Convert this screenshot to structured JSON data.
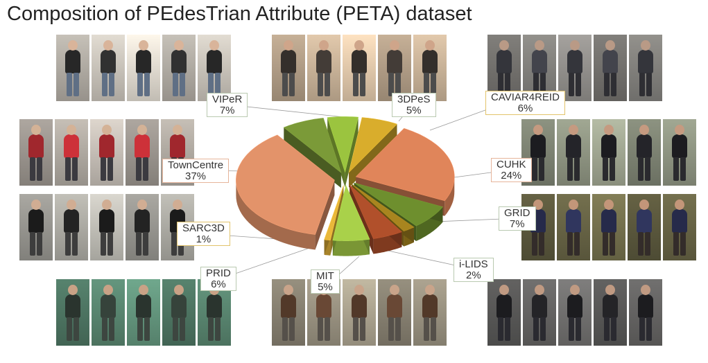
{
  "title": "Composition of PEdesTrian Attribute (PETA) dataset",
  "chart_data": {
    "type": "pie",
    "title": "Composition of PEdesTrian Attribute (PETA) dataset",
    "slices": [
      {
        "name": "3DPeS",
        "value": 5,
        "label": "5%",
        "color": "#9bc43f"
      },
      {
        "name": "CAVIAR4REID",
        "value": 6,
        "label": "6%",
        "color": "#d9ad2c"
      },
      {
        "name": "CUHK",
        "value": 24,
        "label": "24%",
        "color": "#e0855a"
      },
      {
        "name": "GRID",
        "value": 7,
        "label": "7%",
        "color": "#6e8f2e"
      },
      {
        "name": "i-LIDS",
        "value": 2,
        "label": "2%",
        "color": "#a8851f"
      },
      {
        "name": "MIT",
        "value": 5,
        "label": "5%",
        "color": "#b1502b"
      },
      {
        "name": "PRID",
        "value": 6,
        "label": "6%",
        "color": "#a9d14a"
      },
      {
        "name": "SARC3D",
        "value": 1,
        "label": "1%",
        "color": "#e9b83a"
      },
      {
        "name": "TownCentre",
        "value": 37,
        "label": "37%",
        "color": "#e3936a"
      },
      {
        "name": "VIPeR",
        "value": 7,
        "label": "7%",
        "color": "#7b9a38"
      }
    ]
  },
  "thumbnails": [
    {
      "group": "VIPeR",
      "palette": [
        "#d8d2c8",
        "#2b2b2b",
        "#5f6f85",
        "#d9b49a"
      ]
    },
    {
      "group": "3DPeS",
      "palette": [
        "#d8c0a4",
        "#3a3430",
        "#4c4c4c",
        "#cfa58a"
      ]
    },
    {
      "group": "CAVIAR4REID",
      "palette": [
        "#8c8a86",
        "#3a3b42",
        "#2e2e33",
        "#b99a86"
      ]
    },
    {
      "group": "TownCentre",
      "palette": [
        "#bdb6ae",
        "#b22b32",
        "#3b3a40",
        "#d4b296"
      ]
    },
    {
      "group": "CUHK",
      "palette": [
        "#9aa08c",
        "#1f1f24",
        "#2a2a2e",
        "#c59a80"
      ]
    },
    {
      "group": "SARC3D",
      "palette": [
        "#b9b7b0",
        "#1e1e1e",
        "#3d3d3d",
        "#d1ad93"
      ]
    },
    {
      "group": "GRID",
      "palette": [
        "#6f6b4a",
        "#2a2f52",
        "#332c2a",
        "#c39679"
      ]
    },
    {
      "group": "PRID",
      "palette": [
        "#5f8f78",
        "#2f3a33",
        "#3d4640",
        "#c9a286"
      ]
    },
    {
      "group": "MIT",
      "palette": [
        "#a59d8a",
        "#5b3f2e",
        "#55504a",
        "#c9a48a"
      ]
    },
    {
      "group": "i-LIDS",
      "palette": [
        "#6c6b6a",
        "#1f1f22",
        "#2a2a30",
        "#c09a82"
      ]
    }
  ]
}
